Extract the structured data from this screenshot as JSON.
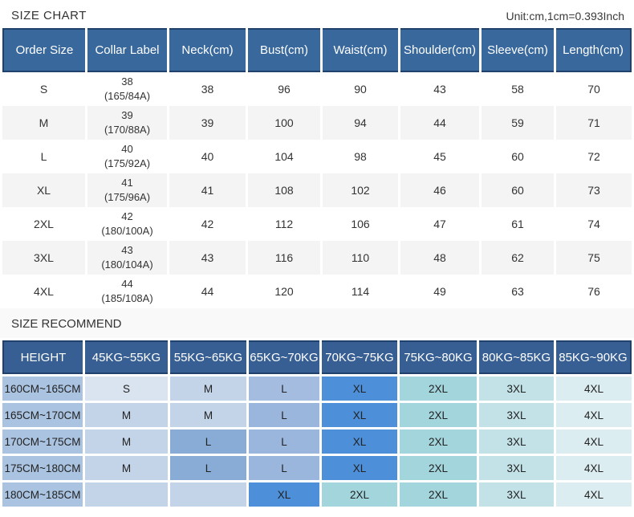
{
  "header": {
    "title": "SIZE CHART",
    "unit": "Unit:cm,1cm=0.393Inch"
  },
  "colors": {
    "size_chart_header_bg": "#39689c",
    "recommend_header_bg": "#375f93",
    "header_border": "#20416b",
    "row_stripe": "#f4f4f5",
    "height_label_bg": "#a9c3e1",
    "xl_highlight": "#4d8fd8"
  },
  "size_chart": {
    "columns": [
      "Order Size",
      "Collar Label",
      "Neck(cm)",
      "Bust(cm)",
      "Waist(cm)",
      "Shoulder(cm)",
      "Sleeve(cm)",
      "Length(cm)"
    ],
    "rows": [
      {
        "order_size": "S",
        "collar_line1": "38",
        "collar_line2": "(165/84A)",
        "values": [
          "38",
          "96",
          "90",
          "43",
          "58",
          "70"
        ]
      },
      {
        "order_size": "M",
        "collar_line1": "39",
        "collar_line2": "(170/88A)",
        "values": [
          "39",
          "100",
          "94",
          "44",
          "59",
          "71"
        ]
      },
      {
        "order_size": "L",
        "collar_line1": "40",
        "collar_line2": "(175/92A)",
        "values": [
          "40",
          "104",
          "98",
          "45",
          "60",
          "72"
        ]
      },
      {
        "order_size": "XL",
        "collar_line1": "41",
        "collar_line2": "(175/96A)",
        "values": [
          "41",
          "108",
          "102",
          "46",
          "60",
          "73"
        ]
      },
      {
        "order_size": "2XL",
        "collar_line1": "42",
        "collar_line2": "(180/100A)",
        "values": [
          "42",
          "112",
          "106",
          "47",
          "61",
          "74"
        ]
      },
      {
        "order_size": "3XL",
        "collar_line1": "43",
        "collar_line2": "(180/104A)",
        "values": [
          "43",
          "116",
          "110",
          "48",
          "62",
          "75"
        ]
      },
      {
        "order_size": "4XL",
        "collar_line1": "44",
        "collar_line2": "(185/108A)",
        "values": [
          "44",
          "120",
          "114",
          "49",
          "63",
          "76"
        ]
      }
    ]
  },
  "recommend": {
    "title": "SIZE RECOMMEND",
    "columns": [
      "HEIGHT",
      "45KG~55KG",
      "55KG~65KG",
      "65KG~70KG",
      "70KG~75KG",
      "75KG~80KG",
      "80KG~85KG",
      "85KG~90KG"
    ],
    "rows": [
      {
        "height": "160CM~165CM",
        "cells": [
          {
            "label": "S",
            "color": "#d9e4f0"
          },
          {
            "label": "M",
            "color": "#c3d3e8"
          },
          {
            "label": "L",
            "color": "#a3bcdf"
          },
          {
            "label": "XL",
            "color": "#4d8fd8"
          },
          {
            "label": "2XL",
            "color": "#a3d5dd"
          },
          {
            "label": "3XL",
            "color": "#c3e2e8"
          },
          {
            "label": "4XL",
            "color": "#dcedf2"
          }
        ]
      },
      {
        "height": "165CM~170CM",
        "cells": [
          {
            "label": "M",
            "color": "#c3d3e8"
          },
          {
            "label": "M",
            "color": "#c3d3e8"
          },
          {
            "label": "L",
            "color": "#9bb6dc"
          },
          {
            "label": "XL",
            "color": "#4d8fd8"
          },
          {
            "label": "2XL",
            "color": "#a3d5dd"
          },
          {
            "label": "3XL",
            "color": "#c3e2e8"
          },
          {
            "label": "4XL",
            "color": "#dcedf2"
          }
        ]
      },
      {
        "height": "170CM~175CM",
        "cells": [
          {
            "label": "M",
            "color": "#c3d3e8"
          },
          {
            "label": "L",
            "color": "#88acd6"
          },
          {
            "label": "L",
            "color": "#9bb6dc"
          },
          {
            "label": "XL",
            "color": "#4d8fd8"
          },
          {
            "label": "2XL",
            "color": "#a3d5dd"
          },
          {
            "label": "3XL",
            "color": "#c3e2e8"
          },
          {
            "label": "4XL",
            "color": "#dcedf2"
          }
        ]
      },
      {
        "height": "175CM~180CM",
        "cells": [
          {
            "label": "M",
            "color": "#c3d3e8"
          },
          {
            "label": "L",
            "color": "#88acd6"
          },
          {
            "label": "L",
            "color": "#9bb6dc"
          },
          {
            "label": "XL",
            "color": "#4d8fd8"
          },
          {
            "label": "2XL",
            "color": "#a3d5dd"
          },
          {
            "label": "3XL",
            "color": "#c3e2e8"
          },
          {
            "label": "4XL",
            "color": "#dcedf2"
          }
        ]
      },
      {
        "height": "180CM~185CM",
        "cells": [
          {
            "label": "",
            "color": "#c3d3e8"
          },
          {
            "label": "",
            "color": "#c3d3e8"
          },
          {
            "label": "XL",
            "color": "#4d8fd8"
          },
          {
            "label": "2XL",
            "color": "#a3d5dd"
          },
          {
            "label": "2XL",
            "color": "#a3d5dd"
          },
          {
            "label": "3XL",
            "color": "#c3e2e8"
          },
          {
            "label": "4XL",
            "color": "#dcedf2"
          }
        ]
      }
    ]
  }
}
